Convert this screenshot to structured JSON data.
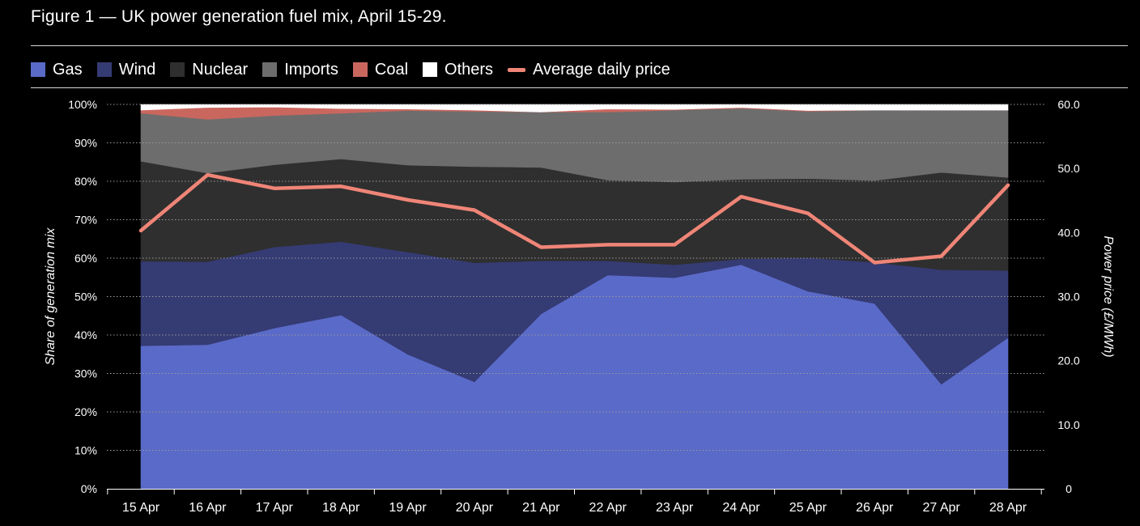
{
  "title": "Figure 1 — UK power generation fuel mix, April 15-29.",
  "colors": {
    "gas": "#5a6ac8",
    "wind": "#353b73",
    "nuclear": "#2f2f2f",
    "imports": "#6d6d6d",
    "coal": "#c9675f",
    "others": "#ffffff",
    "price": "#ef8577",
    "grid": "#9a9a9a",
    "background": "#000000"
  },
  "chart_data": {
    "type": "area",
    "title": "Figure 1 — UK power generation fuel mix, April 15-29.",
    "categories": [
      "15 Apr",
      "16 Apr",
      "17 Apr",
      "18 Apr",
      "19 Apr",
      "20 Apr",
      "21 Apr",
      "22 Apr",
      "23 Apr",
      "24 Apr",
      "25 Apr",
      "26 Apr",
      "27 Apr",
      "28 Apr"
    ],
    "ylabel": "Share of generation mix",
    "y2label": "Power price (£/MWh)",
    "ylim": [
      0,
      100
    ],
    "y2lim": [
      0,
      60
    ],
    "yticks": [
      "0%",
      "10%",
      "20%",
      "30%",
      "40%",
      "50%",
      "60%",
      "70%",
      "80%",
      "90%",
      "100%"
    ],
    "y2ticks": [
      "0",
      "10.0",
      "20.0",
      "30.0",
      "40.0",
      "50.0",
      "60.0"
    ],
    "grid": true,
    "legend_position": "top-left",
    "series": [
      {
        "name": "Gas",
        "key": "gas",
        "values": [
          37.2,
          37.5,
          41.8,
          45.2,
          35.0,
          27.8,
          45.5,
          55.6,
          54.9,
          58.3,
          51.4,
          48.2,
          27.2,
          39.3
        ]
      },
      {
        "name": "Wind",
        "key": "wind",
        "values": [
          22.0,
          21.6,
          21.1,
          19.1,
          26.6,
          31.0,
          13.8,
          3.7,
          3.4,
          1.5,
          8.7,
          10.7,
          29.8,
          17.5
        ]
      },
      {
        "name": "Nuclear",
        "key": "nuclear",
        "values": [
          26.0,
          23.0,
          21.4,
          21.5,
          22.6,
          25.0,
          24.3,
          21.0,
          21.5,
          20.7,
          20.6,
          21.3,
          25.3,
          24.2
        ]
      },
      {
        "name": "Imports",
        "key": "imports",
        "values": [
          12.5,
          14.0,
          12.8,
          11.9,
          14.2,
          14.4,
          14.4,
          17.7,
          18.7,
          18.5,
          17.5,
          18.3,
          16.2,
          17.5
        ]
      },
      {
        "name": "Coal",
        "key": "coal",
        "values": [
          0.8,
          3.1,
          2.2,
          1.2,
          0.4,
          0.3,
          0,
          0.8,
          0.2,
          0.2,
          0.2,
          0,
          0,
          0
        ]
      },
      {
        "name": "Others",
        "key": "others",
        "values": [
          1.5,
          0.8,
          0.7,
          1.1,
          1.2,
          1.5,
          2.0,
          1.2,
          1.3,
          0.8,
          1.6,
          1.5,
          1.5,
          1.5
        ]
      }
    ],
    "line_series": {
      "name": "Average daily price",
      "values": [
        40.3,
        49.0,
        46.9,
        47.2,
        45.1,
        43.5,
        37.7,
        38.1,
        38.1,
        45.6,
        43.0,
        35.3,
        36.3,
        47.4
      ]
    }
  },
  "legend": [
    {
      "label": "Gas",
      "key": "gas",
      "kind": "box"
    },
    {
      "label": "Wind",
      "key": "wind",
      "kind": "box"
    },
    {
      "label": "Nuclear",
      "key": "nuclear",
      "kind": "box"
    },
    {
      "label": "Imports",
      "key": "imports",
      "kind": "box"
    },
    {
      "label": "Coal",
      "key": "coal",
      "kind": "box"
    },
    {
      "label": "Others",
      "key": "others",
      "kind": "box"
    },
    {
      "label": "Average daily price",
      "key": "price",
      "kind": "line"
    }
  ]
}
